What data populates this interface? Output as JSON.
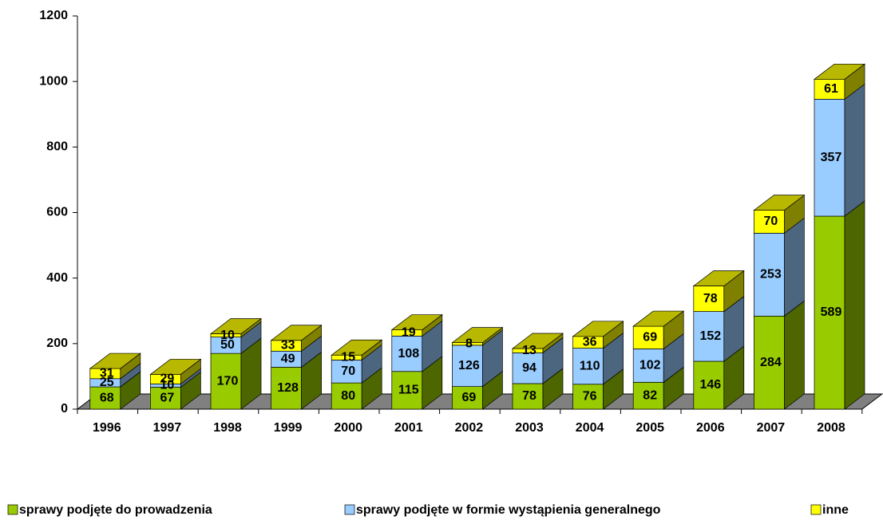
{
  "chart_data": {
    "type": "bar3d_stacked",
    "categories": [
      "1996",
      "1997",
      "1998",
      "1999",
      "2000",
      "2001",
      "2002",
      "2003",
      "2004",
      "2005",
      "2006",
      "2007",
      "2008"
    ],
    "series": [
      {
        "name": "sprawy podjęte do prowadzenia",
        "color": "#99cc00",
        "values": [
          68,
          67,
          170,
          128,
          80,
          115,
          69,
          78,
          76,
          82,
          146,
          284,
          589
        ]
      },
      {
        "name": "sprawy podjęte w formie wystąpienia generalnego",
        "color": "#99ccff",
        "values": [
          25,
          10,
          50,
          49,
          70,
          108,
          126,
          94,
          110,
          102,
          152,
          253,
          357
        ]
      },
      {
        "name": "inne",
        "color": "#ffff00",
        "values": [
          31,
          29,
          10,
          33,
          15,
          19,
          8,
          13,
          36,
          69,
          78,
          70,
          61
        ]
      }
    ],
    "ylim": [
      0,
      1200
    ],
    "yticks": [
      0,
      200,
      400,
      600,
      800,
      1000,
      1200
    ]
  }
}
